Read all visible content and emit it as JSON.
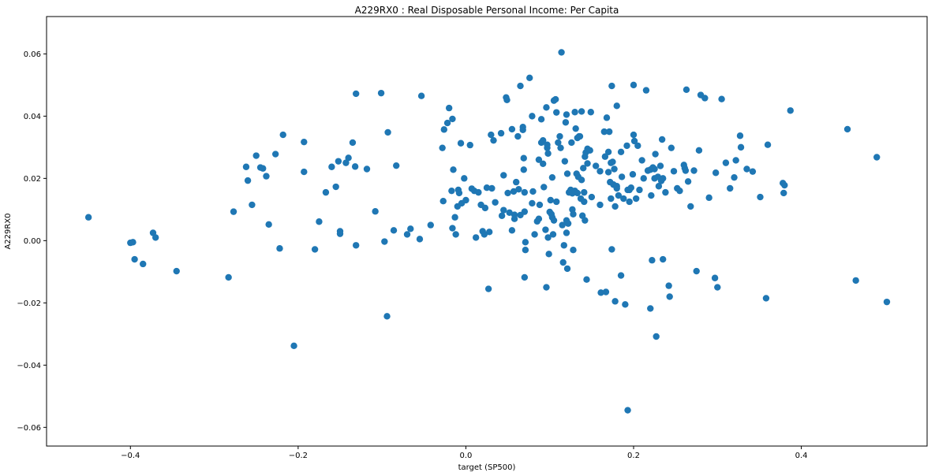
{
  "chart_data": {
    "type": "scatter",
    "title": "A229RX0 :  Real Disposable Personal Income: Per Capita",
    "xlabel": "target (SP500)",
    "ylabel": "A229RX0",
    "xlim": [
      -0.5,
      0.55
    ],
    "ylim": [
      -0.066,
      0.072
    ],
    "xticks": [
      -0.4,
      -0.2,
      0.0,
      0.2,
      0.4
    ],
    "xtick_labels": [
      "−0.4",
      "−0.2",
      "0.0",
      "0.2",
      "0.4"
    ],
    "yticks": [
      -0.06,
      -0.04,
      -0.02,
      0.0,
      0.02,
      0.04,
      0.06
    ],
    "ytick_labels": [
      "−0.06",
      "−0.04",
      "−0.02",
      "0.00",
      "0.02",
      "0.04",
      "0.06"
    ],
    "grid": false,
    "color": "#1f77b4",
    "series": [
      {
        "points": [
          [
            -0.45,
            0.0075
          ],
          [
            -0.4,
            -0.0007
          ],
          [
            -0.397,
            -0.0005
          ],
          [
            -0.395,
            -0.006
          ],
          [
            -0.385,
            -0.0075
          ],
          [
            -0.373,
            0.0025
          ],
          [
            -0.37,
            0.001
          ],
          [
            -0.345,
            -0.0098
          ],
          [
            -0.283,
            -0.0118
          ],
          [
            -0.277,
            0.0093
          ],
          [
            -0.262,
            0.0237
          ],
          [
            -0.26,
            0.0193
          ],
          [
            -0.255,
            0.0115
          ],
          [
            -0.25,
            0.0273
          ],
          [
            -0.245,
            0.0235
          ],
          [
            -0.242,
            0.0232
          ],
          [
            -0.238,
            0.0207
          ],
          [
            -0.235,
            0.0052
          ],
          [
            -0.227,
            0.0278
          ],
          [
            -0.222,
            -0.0025
          ],
          [
            -0.218,
            0.034
          ],
          [
            -0.205,
            -0.0338
          ],
          [
            -0.193,
            0.0317
          ],
          [
            -0.193,
            0.0221
          ],
          [
            -0.18,
            -0.0028
          ],
          [
            -0.175,
            0.0061
          ],
          [
            -0.167,
            0.0155
          ],
          [
            -0.16,
            0.0237
          ],
          [
            -0.155,
            0.0173
          ],
          [
            -0.152,
            0.0255
          ],
          [
            -0.15,
            0.003
          ],
          [
            -0.15,
            0.0022
          ],
          [
            -0.143,
            0.025
          ],
          [
            -0.14,
            0.0266
          ],
          [
            -0.135,
            0.0315
          ],
          [
            -0.132,
            0.0238
          ],
          [
            -0.131,
            0.0472
          ],
          [
            -0.131,
            -0.0015
          ],
          [
            -0.118,
            0.023
          ],
          [
            -0.108,
            0.0094
          ],
          [
            -0.101,
            0.0474
          ],
          [
            -0.097,
            -0.0003
          ],
          [
            -0.094,
            -0.0243
          ],
          [
            -0.093,
            0.0348
          ],
          [
            -0.086,
            0.0033
          ],
          [
            -0.083,
            0.0241
          ],
          [
            -0.07,
            0.002
          ],
          [
            -0.066,
            0.0038
          ],
          [
            -0.055,
            0.0005
          ],
          [
            -0.053,
            0.0465
          ],
          [
            -0.042,
            0.005
          ],
          [
            -0.028,
            0.0298
          ],
          [
            -0.027,
            0.0127
          ],
          [
            -0.026,
            0.0357
          ],
          [
            -0.022,
            0.0378
          ],
          [
            -0.02,
            0.0426
          ],
          [
            -0.017,
            0.016
          ],
          [
            -0.016,
            0.0391
          ],
          [
            -0.016,
            0.004
          ],
          [
            -0.015,
            0.0228
          ],
          [
            -0.013,
            0.0075
          ],
          [
            -0.012,
            0.002
          ],
          [
            -0.01,
            0.011
          ],
          [
            -0.009,
            0.0163
          ],
          [
            -0.008,
            0.0153
          ],
          [
            -0.006,
            0.0313
          ],
          [
            -0.005,
            0.012
          ],
          [
            -0.002,
            0.02
          ],
          [
            0.0,
            0.013
          ],
          [
            0.005,
            0.0307
          ],
          [
            0.007,
            0.0167
          ],
          [
            0.01,
            0.016
          ],
          [
            0.012,
            0.001
          ],
          [
            0.015,
            0.0155
          ],
          [
            0.018,
            0.0115
          ],
          [
            0.02,
            0.003
          ],
          [
            0.022,
            0.002
          ],
          [
            0.023,
            0.0105
          ],
          [
            0.025,
            0.017
          ],
          [
            0.027,
            -0.0155
          ],
          [
            0.028,
            0.0028
          ],
          [
            0.03,
            0.034
          ],
          [
            0.031,
            0.0168
          ],
          [
            0.033,
            0.0322
          ],
          [
            0.035,
            0.0123
          ],
          [
            0.042,
            0.0345
          ],
          [
            0.043,
            0.008
          ],
          [
            0.045,
            0.021
          ],
          [
            0.045,
            0.0098
          ],
          [
            0.048,
            0.046
          ],
          [
            0.049,
            0.0452
          ],
          [
            0.05,
            0.0153
          ],
          [
            0.052,
            0.009
          ],
          [
            0.055,
            0.0358
          ],
          [
            0.055,
            0.0033
          ],
          [
            0.057,
            0.0158
          ],
          [
            0.058,
            0.0083
          ],
          [
            0.058,
            0.007
          ],
          [
            0.06,
            0.0188
          ],
          [
            0.062,
            0.0335
          ],
          [
            0.063,
            0.0165
          ],
          [
            0.065,
            0.0497
          ],
          [
            0.065,
            0.0082
          ],
          [
            0.068,
            0.0365
          ],
          [
            0.068,
            0.0356
          ],
          [
            0.069,
            0.0228
          ],
          [
            0.069,
            0.0265
          ],
          [
            0.07,
            0.0155
          ],
          [
            0.07,
            0.0093
          ],
          [
            0.07,
            -0.0118
          ],
          [
            0.071,
            -0.0005
          ],
          [
            0.071,
            -0.003
          ],
          [
            0.076,
            0.0523
          ],
          [
            0.079,
            0.04
          ],
          [
            0.079,
            0.012
          ],
          [
            0.08,
            0.0158
          ],
          [
            0.082,
            0.002
          ],
          [
            0.085,
            0.0062
          ],
          [
            0.087,
            0.026
          ],
          [
            0.087,
            0.007
          ],
          [
            0.088,
            0.0115
          ],
          [
            0.09,
            0.0315
          ],
          [
            0.09,
            0.039
          ],
          [
            0.092,
            0.0322
          ],
          [
            0.092,
            0.0247
          ],
          [
            0.093,
            0.0172
          ],
          [
            0.095,
            0.0035
          ],
          [
            0.096,
            0.0428
          ],
          [
            0.096,
            -0.015
          ],
          [
            0.097,
            0.0298
          ],
          [
            0.097,
            0.0308
          ],
          [
            0.098,
            0.028
          ],
          [
            0.098,
            0.001
          ],
          [
            0.099,
            -0.0043
          ],
          [
            0.1,
            0.0092
          ],
          [
            0.101,
            0.013
          ],
          [
            0.102,
            0.0085
          ],
          [
            0.103,
            0.0203
          ],
          [
            0.103,
            0.0075
          ],
          [
            0.104,
            0.002
          ],
          [
            0.105,
            0.045
          ],
          [
            0.105,
            0.0065
          ],
          [
            0.107,
            0.0454
          ],
          [
            0.108,
            0.0412
          ],
          [
            0.108,
            0.0125
          ],
          [
            0.11,
            0.0315
          ],
          [
            0.112,
            0.0335
          ],
          [
            0.113,
            0.0298
          ],
          [
            0.114,
            0.0605
          ],
          [
            0.115,
            0.005
          ],
          [
            0.116,
            -0.007
          ],
          [
            0.117,
            -0.0015
          ],
          [
            0.118,
            0.0255
          ],
          [
            0.119,
            0.038
          ],
          [
            0.12,
            0.0405
          ],
          [
            0.12,
            0.0025
          ],
          [
            0.12,
            0.0065
          ],
          [
            0.121,
            0.0215
          ],
          [
            0.121,
            -0.009
          ],
          [
            0.122,
            0.0055
          ],
          [
            0.123,
            0.0155
          ],
          [
            0.125,
            0.0163
          ],
          [
            0.126,
            0.0315
          ],
          [
            0.127,
            0.01
          ],
          [
            0.127,
            0.0152
          ],
          [
            0.128,
            0.0085
          ],
          [
            0.128,
            -0.003
          ],
          [
            0.13,
            0.016
          ],
          [
            0.13,
            0.0413
          ],
          [
            0.131,
            0.036
          ],
          [
            0.132,
            0.0215
          ],
          [
            0.133,
            0.0153
          ],
          [
            0.133,
            0.033
          ],
          [
            0.134,
            0.0205
          ],
          [
            0.135,
            0.0335
          ],
          [
            0.136,
            0.0335
          ],
          [
            0.137,
            0.0135
          ],
          [
            0.138,
            0.0415
          ],
          [
            0.138,
            0.0195
          ],
          [
            0.139,
            0.008
          ],
          [
            0.14,
            0.0233
          ],
          [
            0.141,
            0.0155
          ],
          [
            0.141,
            0.0125
          ],
          [
            0.142,
            0.027
          ],
          [
            0.142,
            0.0065
          ],
          [
            0.143,
            0.0283
          ],
          [
            0.144,
            -0.0125
          ],
          [
            0.145,
            0.0295
          ],
          [
            0.145,
            0.0248
          ],
          [
            0.148,
            0.029
          ],
          [
            0.149,
            0.0413
          ],
          [
            0.15,
            0.014
          ],
          [
            0.155,
            0.024
          ],
          [
            0.16,
            0.0223
          ],
          [
            0.16,
            0.0115
          ],
          [
            0.161,
            -0.0167
          ],
          [
            0.165,
            0.035
          ],
          [
            0.166,
            0.027
          ],
          [
            0.167,
            -0.0165
          ],
          [
            0.168,
            0.0395
          ],
          [
            0.17,
            0.022
          ],
          [
            0.17,
            0.0285
          ],
          [
            0.171,
            0.035
          ],
          [
            0.172,
            0.0188
          ],
          [
            0.173,
            0.025
          ],
          [
            0.173,
            0.0135
          ],
          [
            0.174,
            0.0497
          ],
          [
            0.174,
            -0.0028
          ],
          [
            0.175,
            0.0253
          ],
          [
            0.176,
            0.018
          ],
          [
            0.177,
            0.023
          ],
          [
            0.178,
            0.011
          ],
          [
            0.178,
            -0.0195
          ],
          [
            0.18,
            0.0175
          ],
          [
            0.18,
            0.0433
          ],
          [
            0.18,
            0.0168
          ],
          [
            0.182,
            0.0145
          ],
          [
            0.185,
            0.0285
          ],
          [
            0.185,
            -0.0112
          ],
          [
            0.186,
            0.0205
          ],
          [
            0.188,
            0.0135
          ],
          [
            0.19,
            -0.0205
          ],
          [
            0.192,
            0.0305
          ],
          [
            0.193,
            0.0163
          ],
          [
            0.193,
            -0.0545
          ],
          [
            0.195,
            0.0125
          ],
          [
            0.195,
            0.0163
          ],
          [
            0.197,
            0.017
          ],
          [
            0.199,
            0.0213
          ],
          [
            0.2,
            0.034
          ],
          [
            0.2,
            0.05
          ],
          [
            0.201,
            0.032
          ],
          [
            0.203,
            0.0135
          ],
          [
            0.205,
            0.0305
          ],
          [
            0.207,
            0.0163
          ],
          [
            0.21,
            0.0258
          ],
          [
            0.212,
            0.02
          ],
          [
            0.215,
            0.0483
          ],
          [
            0.217,
            0.0225
          ],
          [
            0.22,
            0.0228
          ],
          [
            0.22,
            -0.0218
          ],
          [
            0.221,
            0.0145
          ],
          [
            0.222,
            -0.0063
          ],
          [
            0.223,
            0.0235
          ],
          [
            0.225,
            0.023
          ],
          [
            0.225,
            0.02
          ],
          [
            0.226,
            0.0278
          ],
          [
            0.227,
            -0.0308
          ],
          [
            0.229,
            0.0205
          ],
          [
            0.23,
            0.0175
          ],
          [
            0.232,
            0.024
          ],
          [
            0.233,
            0.0192
          ],
          [
            0.234,
            0.0325
          ],
          [
            0.235,
            0.02
          ],
          [
            0.235,
            -0.006
          ],
          [
            0.238,
            0.0155
          ],
          [
            0.242,
            -0.0145
          ],
          [
            0.243,
            -0.018
          ],
          [
            0.245,
            0.0298
          ],
          [
            0.248,
            0.0223
          ],
          [
            0.252,
            0.0168
          ],
          [
            0.255,
            0.016
          ],
          [
            0.26,
            0.0243
          ],
          [
            0.261,
            0.0233
          ],
          [
            0.262,
            0.0225
          ],
          [
            0.263,
            0.0485
          ],
          [
            0.265,
            0.019
          ],
          [
            0.268,
            0.011
          ],
          [
            0.272,
            0.0225
          ],
          [
            0.275,
            -0.0098
          ],
          [
            0.278,
            0.029
          ],
          [
            0.28,
            0.0468
          ],
          [
            0.285,
            0.0458
          ],
          [
            0.29,
            0.0138
          ],
          [
            0.297,
            -0.012
          ],
          [
            0.298,
            0.0218
          ],
          [
            0.3,
            -0.015
          ],
          [
            0.305,
            0.0455
          ],
          [
            0.31,
            0.025
          ],
          [
            0.315,
            0.0168
          ],
          [
            0.32,
            0.0203
          ],
          [
            0.322,
            0.0258
          ],
          [
            0.327,
            0.0337
          ],
          [
            0.328,
            0.03
          ],
          [
            0.335,
            0.023
          ],
          [
            0.342,
            0.0222
          ],
          [
            0.351,
            0.014
          ],
          [
            0.358,
            -0.0185
          ],
          [
            0.36,
            0.0308
          ],
          [
            0.378,
            0.0185
          ],
          [
            0.379,
            0.0153
          ],
          [
            0.38,
            0.0178
          ],
          [
            0.387,
            0.0418
          ],
          [
            0.455,
            0.0358
          ],
          [
            0.465,
            -0.0128
          ],
          [
            0.49,
            0.0268
          ],
          [
            0.502,
            -0.0197
          ]
        ]
      }
    ]
  }
}
